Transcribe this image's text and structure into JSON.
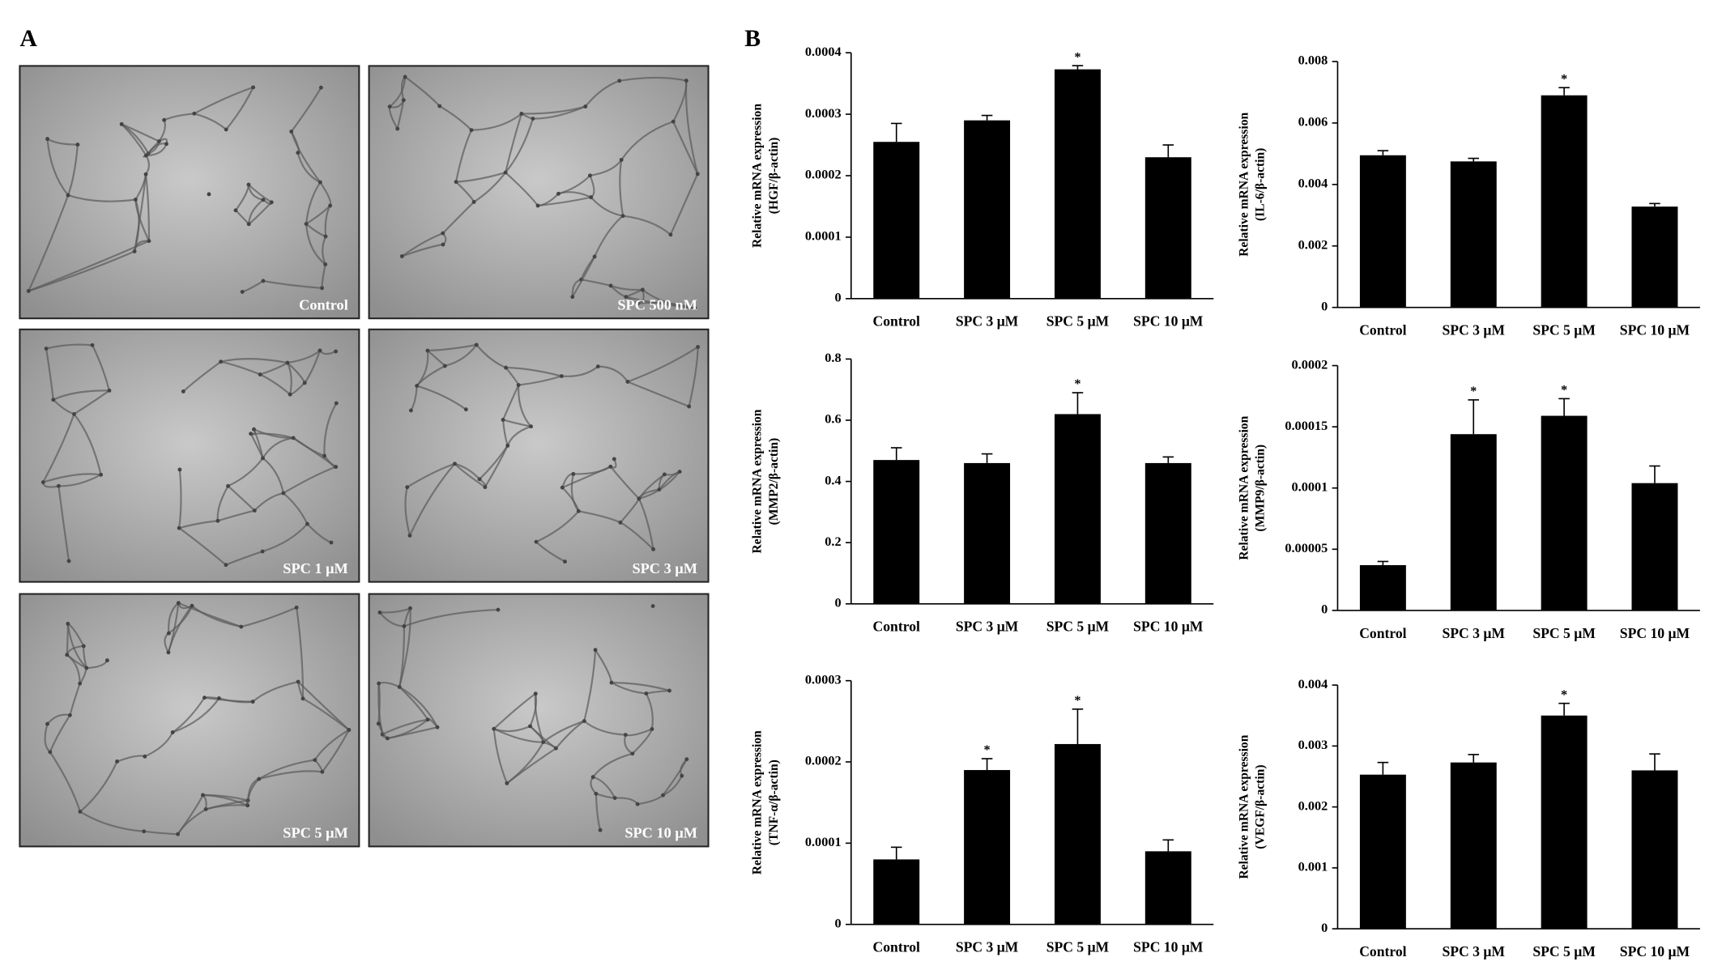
{
  "panel_labels": [
    "A",
    "B"
  ],
  "images": [
    {
      "caption": "Control"
    },
    {
      "caption": "SPC 500 nM"
    },
    {
      "caption": "SPC 1 μM"
    },
    {
      "caption": "SPC 3 μM"
    },
    {
      "caption": "SPC 5 μM"
    },
    {
      "caption": "SPC 10 μM"
    }
  ],
  "chart_data": [
    {
      "type": "bar",
      "ylabel": [
        "Relative mRNA expression",
        "(HGF/β-actin)"
      ],
      "color": "#000000",
      "categories": [
        "Control",
        "SPC 3 μM",
        "SPC 5 μM",
        "SPC 10 μM"
      ],
      "values": [
        0.000255,
        0.00029,
        0.000373,
        0.00023
      ],
      "errors": [
        3e-05,
        8e-06,
        6e-06,
        2e-05
      ],
      "significance": [
        null,
        null,
        "*",
        null
      ],
      "ylim": [
        0,
        0.0004
      ],
      "yticks": [
        0,
        0.0001,
        0.0002,
        0.0003,
        0.0004
      ]
    },
    {
      "type": "bar",
      "ylabel": [
        "Relative mRNA expression",
        "(IL-6/β-actin)"
      ],
      "color": "#000000",
      "categories": [
        "Control",
        "SPC 3 μM",
        "SPC 5 μM",
        "SPC 10 μM"
      ],
      "values": [
        0.00495,
        0.00475,
        0.0069,
        0.00328
      ],
      "errors": [
        0.00015,
        0.0001,
        0.00025,
        0.0001
      ],
      "significance": [
        null,
        null,
        "*",
        null
      ],
      "ylim": [
        0,
        0.008
      ],
      "yticks": [
        0,
        0.002,
        0.004,
        0.006,
        0.008
      ]
    },
    {
      "type": "bar",
      "ylabel": [
        "Relative mRNA expression",
        "(MMP2/β-actin)"
      ],
      "color": "#000000",
      "categories": [
        "Control",
        "SPC 3 μM",
        "SPC 5 μM",
        "SPC 10 μM"
      ],
      "values": [
        0.47,
        0.46,
        0.62,
        0.46
      ],
      "errors": [
        0.04,
        0.03,
        0.07,
        0.02
      ],
      "significance": [
        null,
        null,
        "*",
        null
      ],
      "ylim": [
        0,
        0.8
      ],
      "yticks": [
        0,
        0.2,
        0.4,
        0.6,
        0.8
      ]
    },
    {
      "type": "bar",
      "ylabel": [
        "Relative mRNA expression",
        "(MMP9/β-actin)"
      ],
      "color": "#000000",
      "categories": [
        "Control",
        "SPC 3 μM",
        "SPC 5 μM",
        "SPC 10 μM"
      ],
      "values": [
        3.7e-05,
        0.000144,
        0.000159,
        0.000104
      ],
      "errors": [
        3e-06,
        2.8e-05,
        1.4e-05,
        1.4e-05
      ],
      "significance": [
        null,
        "*",
        "*",
        null
      ],
      "ylim": [
        0,
        0.0002
      ],
      "yticks": [
        0,
        5e-05,
        0.0001,
        0.00015,
        0.0002
      ]
    },
    {
      "type": "bar",
      "ylabel": [
        "Relative mRNA expression",
        "(TNF-α/β-actin)"
      ],
      "color": "#000000",
      "categories": [
        "Control",
        "SPC 3 μM",
        "SPC 5 μM",
        "SPC 10 μM"
      ],
      "values": [
        8e-05,
        0.00019,
        0.000222,
        9e-05
      ],
      "errors": [
        1.5e-05,
        1.4e-05,
        4.3e-05,
        1.4e-05
      ],
      "significance": [
        null,
        "*",
        "*",
        null
      ],
      "ylim": [
        0,
        0.0003
      ],
      "yticks": [
        0,
        0.0001,
        0.0002,
        0.0003
      ]
    },
    {
      "type": "bar",
      "ylabel": [
        "Relative mRNA expression",
        "(VEGF/β-actin)"
      ],
      "color": "#000000",
      "categories": [
        "Control",
        "SPC 3 μM",
        "SPC 5 μM",
        "SPC 10 μM"
      ],
      "values": [
        0.00253,
        0.00273,
        0.0035,
        0.0026
      ],
      "errors": [
        0.0002,
        0.00013,
        0.0002,
        0.00027
      ],
      "significance": [
        null,
        null,
        "*",
        null
      ],
      "ylim": [
        0,
        0.004
      ],
      "yticks": [
        0,
        0.001,
        0.002,
        0.003,
        0.004
      ]
    }
  ]
}
